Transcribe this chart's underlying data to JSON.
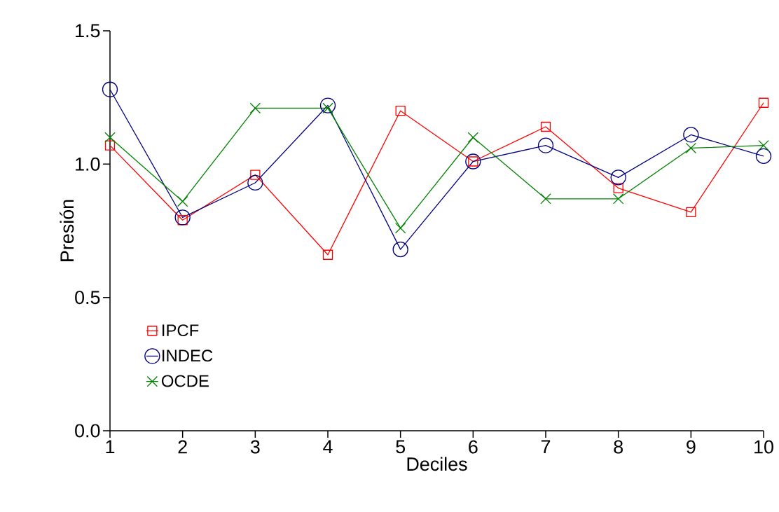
{
  "chart_data": {
    "type": "line",
    "xlabel": "Deciles",
    "ylabel": "Presión",
    "x": [
      1,
      2,
      3,
      4,
      5,
      6,
      7,
      8,
      9,
      10
    ],
    "xlim": [
      1,
      10
    ],
    "xticks": [
      1,
      2,
      3,
      4,
      5,
      6,
      7,
      8,
      9,
      10
    ],
    "ylim": [
      0,
      1.5
    ],
    "yticks": [
      {
        "value": 0,
        "label": "0.0"
      },
      {
        "value": 0.5,
        "label": "0.5"
      },
      {
        "value": 1,
        "label": "1.0"
      },
      {
        "value": 1.5,
        "label": "1.5"
      }
    ],
    "grid": false,
    "legend": "bottom left",
    "line_style": "solid",
    "series": [
      {
        "name": "IPCF",
        "color": "#ff0000",
        "marker": "square",
        "values": [
          1.07,
          0.79,
          0.96,
          0.66,
          1.2,
          1.01,
          1.14,
          0.91,
          0.82,
          1.23
        ]
      },
      {
        "name": "INDEC",
        "color": "#000080",
        "marker": "circle",
        "values": [
          1.28,
          0.8,
          0.93,
          1.22,
          0.68,
          1.01,
          1.07,
          0.95,
          1.11,
          1.03
        ]
      },
      {
        "name": "OCDE",
        "color": "#008000",
        "marker": "cross",
        "values": [
          1.1,
          0.86,
          1.21,
          1.21,
          0.76,
          1.1,
          0.87,
          0.87,
          1.06,
          1.07
        ]
      }
    ]
  }
}
